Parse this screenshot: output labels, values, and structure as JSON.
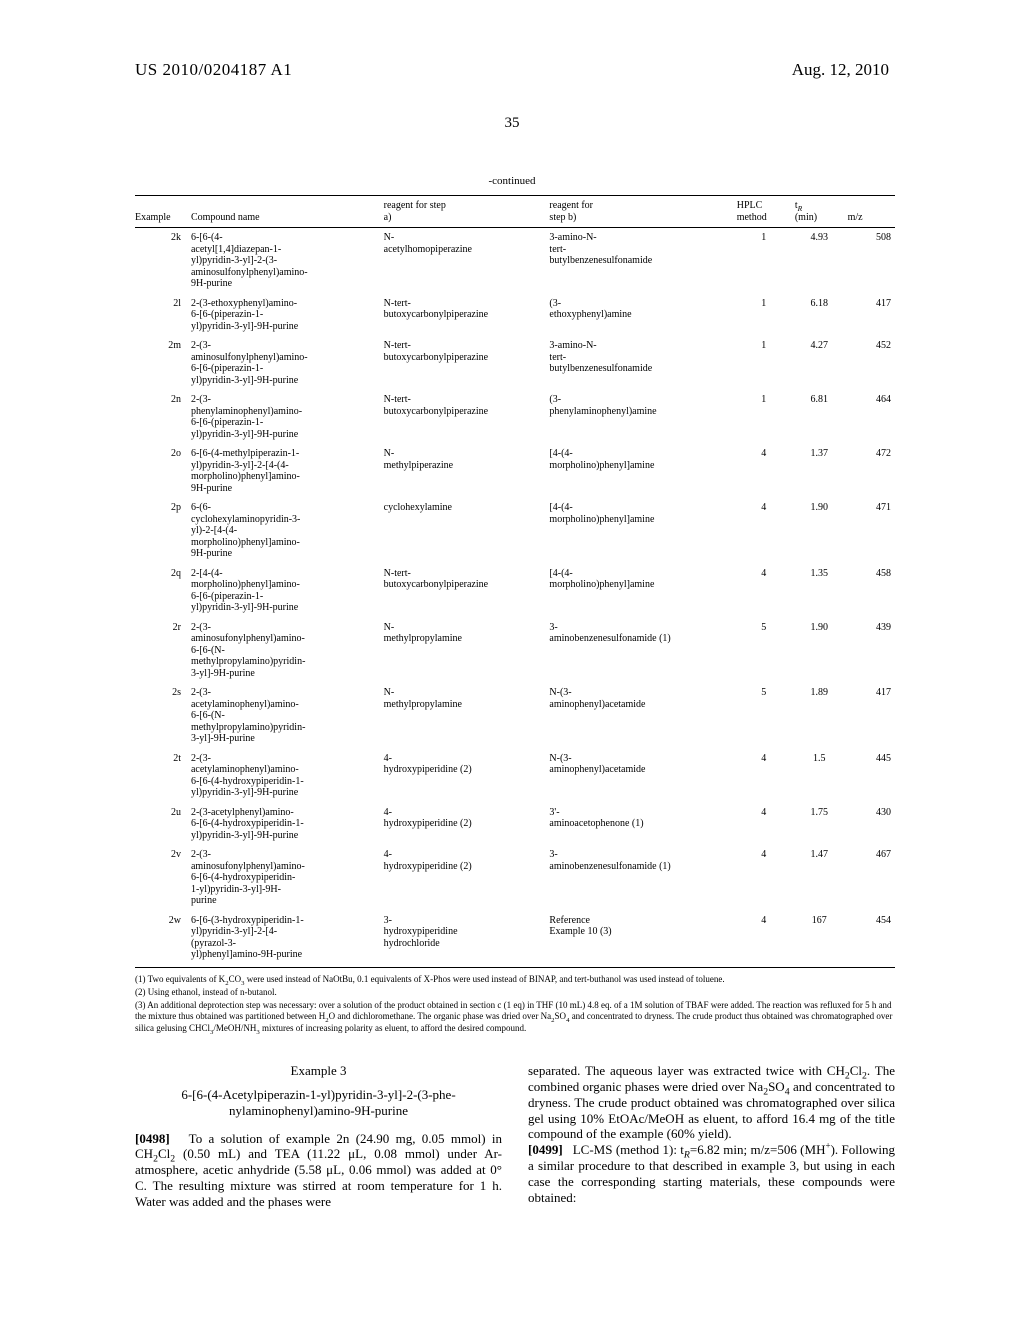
{
  "header": {
    "pubnum": "US 2010/0204187 A1",
    "date": "Aug. 12, 2010",
    "pagenum": "35",
    "continued": "-continued"
  },
  "table": {
    "headers": {
      "example": "Example",
      "compound": "Compound name",
      "reagent_a": "reagent for step\na)",
      "reagent_b": "reagent for\nstep b)",
      "hplc": "HPLC\nmethod",
      "tr_html": "t<sub><i>R</i></sub>\n(min)",
      "mz": "m/z"
    },
    "rows": [
      {
        "ex": "2k",
        "name": "6-[6-(4-\nacetyl[1,4]diazepan-1-\nyl)pyridin-3-yl]-2-(3-\naminosulfonylphenyl)amino-\n9H-purine",
        "ra": "N-\nacetylhomopiperazine",
        "rb": "3-amino-N-\ntert-\nbutylbenzenesulfonamide",
        "hplc": "1",
        "tr": "4.93",
        "mz": "508"
      },
      {
        "ex": "2l",
        "name": "2-(3-ethoxyphenyl)amino-\n6-[6-(piperazin-1-\nyl)pyridin-3-yl]-9H-purine",
        "ra": "N-tert-\nbutoxycarbonylpiperazine",
        "rb": "(3-\nethoxyphenyl)amine",
        "hplc": "1",
        "tr": "6.18",
        "mz": "417"
      },
      {
        "ex": "2m",
        "name": "2-(3-\naminosulfonylphenyl)amino-\n6-[6-(piperazin-1-\nyl)pyridin-3-yl]-9H-purine",
        "ra": "N-tert-\nbutoxycarbonylpiperazine",
        "rb": "3-amino-N-\ntert-\nbutylbenzenesulfonamide",
        "hplc": "1",
        "tr": "4.27",
        "mz": "452"
      },
      {
        "ex": "2n",
        "name": "2-(3-\nphenylaminophenyl)amino-\n6-[6-(piperazin-1-\nyl)pyridin-3-yl]-9H-purine",
        "ra": "N-tert-\nbutoxycarbonylpiperazine",
        "rb": "(3-\nphenylaminophenyl)amine",
        "hplc": "1",
        "tr": "6.81",
        "mz": "464"
      },
      {
        "ex": "2o",
        "name": "6-[6-(4-methylpiperazin-1-\nyl)pyridin-3-yl]-2-[4-(4-\nmorpholino)phenyl]amino-\n9H-purine",
        "ra": "N-\nmethylpiperazine",
        "rb": "[4-(4-\nmorpholino)phenyl]amine",
        "hplc": "4",
        "tr": "1.37",
        "mz": "472"
      },
      {
        "ex": "2p",
        "name": "6-(6-\ncyclohexylaminopyridin-3-\nyl)-2-[4-(4-\nmorpholino)phenyl]amino-\n9H-purine",
        "ra": "cyclohexylamine",
        "rb": "[4-(4-\nmorpholino)phenyl]amine",
        "hplc": "4",
        "tr": "1.90",
        "mz": "471"
      },
      {
        "ex": "2q",
        "name": "2-[4-(4-\nmorpholino)phenyl]amino-\n6-[6-(piperazin-1-\nyl)pyridin-3-yl]-9H-purine",
        "ra": "N-tert-\nbutoxycarbonylpiperazine",
        "rb": "[4-(4-\nmorpholino)phenyl]amine",
        "hplc": "4",
        "tr": "1.35",
        "mz": "458"
      },
      {
        "ex": "2r",
        "name": "2-(3-\naminosufonylphenyl)amino-\n6-[6-(N-\nmethylpropylamino)pyridin-\n3-yl]-9H-purine",
        "ra": "N-\nmethylpropylamine",
        "rb": "3-\naminobenzenesulfonamide (1)",
        "hplc": "5",
        "tr": "1.90",
        "mz": "439"
      },
      {
        "ex": "2s",
        "name": "2-(3-\nacetylaminophenyl)amino-\n6-[6-(N-\nmethylpropylamino)pyridin-\n3-yl]-9H-purine",
        "ra": "N-\nmethylpropylamine",
        "rb": "N-(3-\naminophenyl)acetamide",
        "hplc": "5",
        "tr": "1.89",
        "mz": "417"
      },
      {
        "ex": "2t",
        "name": "2-(3-\nacetylaminophenyl)amino-\n6-[6-(4-hydroxypiperidin-1-\nyl)pyridin-3-yl]-9H-purine",
        "ra": "4-\nhydroxypiperidine (2)",
        "rb": "N-(3-\naminophenyl)acetamide",
        "hplc": "4",
        "tr": "1.5",
        "mz": "445"
      },
      {
        "ex": "2u",
        "name": "2-(3-acetylphenyl)amino-\n6-[6-(4-hydroxypiperidin-1-\nyl)pyridin-3-yl]-9H-purine",
        "ra": "4-\nhydroxypiperidine (2)",
        "rb": "3'-\naminoacetophenone (1)",
        "hplc": "4",
        "tr": "1.75",
        "mz": "430"
      },
      {
        "ex": "2v",
        "name": "2-(3-\naminosufonylphenyl)amino-\n6-[6-(4-hydroxypiperidin-\n1-yl)pyridin-3-yl]-9H-\npurine",
        "ra": "4-\nhydroxypiperidine (2)",
        "rb": "3-\naminobenzenesulfonamide (1)",
        "hplc": "4",
        "tr": "1.47",
        "mz": "467"
      },
      {
        "ex": "2w",
        "name": "6-[6-(3-hydroxypiperidin-1-\nyl)pyridin-3-yl]-2-[4-\n(pyrazol-3-\nyl)phenyl]amino-9H-purine",
        "ra": "3-\nhydroxypiperidine\nhydrochloride",
        "rb": "Reference\nExample 10 (3)",
        "hplc": "4",
        "tr": "167",
        "mz": "454"
      }
    ]
  },
  "footnotes": {
    "n1_html": "(1) Two equivalents of K<sub>2</sub>CO<sub>3</sub> were used instead of NaOtBu, 0.1 equivalents of X-Phos were used instead of BINAP, and tert-buthanol was used instead of toluene.",
    "n2": "(2) Using ethanol, instead of n-butanol.",
    "n3_html": "(3) An additional deprotection step was necessary: over a solution of the product obtained in section c (1 eq) in THF (10 mL) 4.8 eq. of a 1M solution of TBAF were added. The reaction was refluxed for 5 h and the mixture thus obtained was partitioned between H<sub>2</sub>O and dichloromethane. The organic phase was dried over Na<sub>2</sub>SO<sub>4</sub> and concentrated to dryness. The crude product thus obtained was chromatographed over silica gelusing CHCl<sub>3</sub>/MeOH/NH<sub>3</sub> mixtures of increasing polarity as eluent, to afford the desired compound."
  },
  "example3": {
    "title": "Example 3",
    "subtitle": "6-[6-(4-Acetylpiperazin-1-yl)pyridin-3-yl]-2-(3-phe-\nnylaminophenyl)amino-9H-purine",
    "p498_html": "<span class=\"pnum\">[0498]</span>&nbsp;&nbsp;&nbsp;To a solution of example 2n (24.90 mg, 0.05 mmol) in CH<sub>2</sub>Cl<sub>2</sub> (0.50 mL) and TEA (11.22 μL, 0.08 mmol) under Ar-atmosphere, acetic anhydride (5.58 μL, 0.06 mmol) was added at 0° C. The resulting mixture was stirred at room temperature for 1 h. Water was added and the phases were",
    "right_top_html": "separated. The aqueous layer was extracted twice with CH<sub>2</sub>Cl<sub>2</sub>. The combined organic phases were dried over Na<sub>2</sub>SO<sub>4</sub> and concentrated to dryness. The crude product obtained was chromatographed over silica gel using 10% EtOAc/MeOH as eluent, to afford 16.4 mg of the title compound of the example (60% yield).",
    "p499_html": "<span class=\"pnum\">[0499]</span>&nbsp;&nbsp;&nbsp;LC-MS (method 1): t<sub><i>R</i></sub>=6.82 min; m/z=506 (MH<sup>+</sup>). Following a similar procedure to that described in example 3, but using in each case the corresponding starting materials, these compounds were obtained:"
  }
}
